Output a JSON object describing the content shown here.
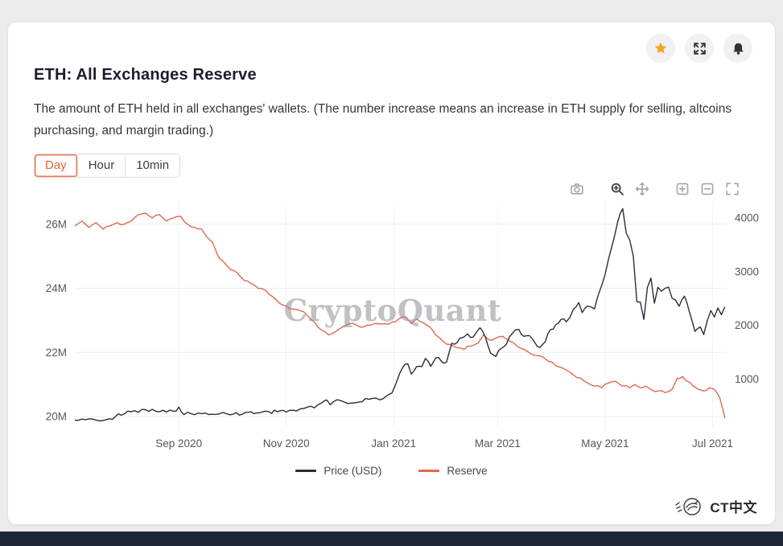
{
  "colors": {
    "accent": "#e2603a",
    "accent_border": "#ee7a50",
    "star": "#f2a51f",
    "bottom_bar": "#1f2637",
    "page_bg": "#ebebeb"
  },
  "card": {
    "title": "ETH: All Exchanges Reserve",
    "description": "The amount of ETH held in all exchanges' wallets. (The number increase means an increase in ETH supply for selling, altcoins purchasing, and margin trading.)",
    "interval_tabs": [
      {
        "label": "Day",
        "selected": true
      },
      {
        "label": "Hour",
        "selected": false
      },
      {
        "label": "10min",
        "selected": false
      }
    ],
    "watermark": "CryptoQuant"
  },
  "legend": [
    {
      "label": "Price (USD)"
    },
    {
      "label": "Reserve"
    }
  ],
  "footer": {
    "brand": "CT中文"
  },
  "chart_data": {
    "type": "line",
    "x_axis": {
      "range": [
        "2020-07-04",
        "2021-07-09"
      ],
      "tick_dates": [
        "2020-09-01",
        "2020-11-01",
        "2021-01-01",
        "2021-03-01",
        "2021-05-01",
        "2021-07-01"
      ],
      "tick_labels": [
        "Sep 2020",
        "Nov 2020",
        "Jan 2021",
        "Mar 2021",
        "May 2021",
        "Jul 2021"
      ]
    },
    "left_axis": {
      "tick_values": [
        20,
        22,
        24,
        26
      ],
      "tick_labels": [
        "20M",
        "22M",
        "24M",
        "26M"
      ],
      "range": [
        19.6,
        26.7
      ],
      "unit": "M ETH"
    },
    "right_axis": {
      "tick_values": [
        1000,
        2000,
        3000,
        4000
      ],
      "tick_labels": [
        "1000",
        "2000",
        "3000",
        "4000"
      ],
      "range": [
        60,
        4300
      ],
      "unit": "USD"
    },
    "series": [
      {
        "name": "Price (USD)",
        "axis": "right",
        "color": "#2b2e39",
        "points": [
          [
            "2020-07-04",
            232
          ],
          [
            "2020-07-10",
            241
          ],
          [
            "2020-07-16",
            234
          ],
          [
            "2020-07-22",
            245
          ],
          [
            "2020-07-27",
            300
          ],
          [
            "2020-08-01",
            346
          ],
          [
            "2020-08-05",
            390
          ],
          [
            "2020-08-09",
            378
          ],
          [
            "2020-08-13",
            427
          ],
          [
            "2020-08-17",
            433
          ],
          [
            "2020-08-21",
            388
          ],
          [
            "2020-08-25",
            383
          ],
          [
            "2020-08-29",
            398
          ],
          [
            "2020-09-01",
            475
          ],
          [
            "2020-09-04",
            335
          ],
          [
            "2020-09-08",
            352
          ],
          [
            "2020-09-12",
            366
          ],
          [
            "2020-09-16",
            365
          ],
          [
            "2020-09-20",
            342
          ],
          [
            "2020-09-24",
            349
          ],
          [
            "2020-09-28",
            354
          ],
          [
            "2020-10-02",
            346
          ],
          [
            "2020-10-07",
            341
          ],
          [
            "2020-10-12",
            387
          ],
          [
            "2020-10-17",
            368
          ],
          [
            "2020-10-22",
            392
          ],
          [
            "2020-10-27",
            387
          ],
          [
            "2020-11-01",
            383
          ],
          [
            "2020-11-05",
            417
          ],
          [
            "2020-11-09",
            444
          ],
          [
            "2020-11-13",
            476
          ],
          [
            "2020-11-17",
            462
          ],
          [
            "2020-11-21",
            550
          ],
          [
            "2020-11-24",
            608
          ],
          [
            "2020-11-26",
            518
          ],
          [
            "2020-11-30",
            615
          ],
          [
            "2020-12-04",
            570
          ],
          [
            "2020-12-08",
            551
          ],
          [
            "2020-12-12",
            568
          ],
          [
            "2020-12-16",
            636
          ],
          [
            "2020-12-20",
            639
          ],
          [
            "2020-12-24",
            612
          ],
          [
            "2020-12-28",
            686
          ],
          [
            "2020-12-31",
            738
          ],
          [
            "2021-01-03",
            978
          ],
          [
            "2021-01-06",
            1208
          ],
          [
            "2021-01-09",
            1281
          ],
          [
            "2021-01-11",
            1091
          ],
          [
            "2021-01-14",
            1232
          ],
          [
            "2021-01-17",
            1233
          ],
          [
            "2021-01-19",
            1382
          ],
          [
            "2021-01-22",
            1235
          ],
          [
            "2021-01-25",
            1395
          ],
          [
            "2021-01-28",
            1330
          ],
          [
            "2021-01-31",
            1314
          ],
          [
            "2021-02-03",
            1665
          ],
          [
            "2021-02-06",
            1679
          ],
          [
            "2021-02-09",
            1768
          ],
          [
            "2021-02-12",
            1840
          ],
          [
            "2021-02-15",
            1779
          ],
          [
            "2021-02-19",
            1956
          ],
          [
            "2021-02-22",
            1781
          ],
          [
            "2021-02-25",
            1482
          ],
          [
            "2021-02-28",
            1419
          ],
          [
            "2021-03-03",
            1567
          ],
          [
            "2021-03-06",
            1650
          ],
          [
            "2021-03-09",
            1835
          ],
          [
            "2021-03-13",
            1924
          ],
          [
            "2021-03-16",
            1793
          ],
          [
            "2021-03-19",
            1808
          ],
          [
            "2021-03-22",
            1681
          ],
          [
            "2021-03-25",
            1587
          ],
          [
            "2021-03-28",
            1691
          ],
          [
            "2021-03-31",
            1919
          ],
          [
            "2021-04-03",
            2010
          ],
          [
            "2021-04-06",
            2110
          ],
          [
            "2021-04-09",
            2068
          ],
          [
            "2021-04-13",
            2299
          ],
          [
            "2021-04-16",
            2422
          ],
          [
            "2021-04-18",
            2236
          ],
          [
            "2021-04-21",
            2360
          ],
          [
            "2021-04-25",
            2307
          ],
          [
            "2021-04-28",
            2648
          ],
          [
            "2021-05-01",
            2945
          ],
          [
            "2021-05-03",
            3240
          ],
          [
            "2021-05-05",
            3490
          ],
          [
            "2021-05-08",
            3910
          ],
          [
            "2021-05-11",
            4174
          ],
          [
            "2021-05-13",
            3717
          ],
          [
            "2021-05-15",
            3587
          ],
          [
            "2021-05-17",
            3282
          ],
          [
            "2021-05-19",
            2439
          ],
          [
            "2021-05-21",
            2430
          ],
          [
            "2021-05-23",
            2110
          ],
          [
            "2021-05-25",
            2705
          ],
          [
            "2021-05-27",
            2880
          ],
          [
            "2021-05-29",
            2412
          ],
          [
            "2021-05-31",
            2707
          ],
          [
            "2021-06-02",
            2634
          ],
          [
            "2021-06-04",
            2690
          ],
          [
            "2021-06-06",
            2711
          ],
          [
            "2021-06-08",
            2506
          ],
          [
            "2021-06-10",
            2471
          ],
          [
            "2021-06-12",
            2354
          ],
          [
            "2021-06-15",
            2543
          ],
          [
            "2021-06-18",
            2231
          ],
          [
            "2021-06-21",
            1886
          ],
          [
            "2021-06-24",
            1968
          ],
          [
            "2021-06-26",
            1830
          ],
          [
            "2021-06-28",
            2085
          ],
          [
            "2021-06-30",
            2275
          ],
          [
            "2021-07-02",
            2155
          ],
          [
            "2021-07-04",
            2322
          ],
          [
            "2021-07-06",
            2198
          ],
          [
            "2021-07-08",
            2342
          ]
        ]
      },
      {
        "name": "Reserve",
        "axis": "left",
        "color": "#e2694c",
        "unit": "M",
        "points": [
          [
            "2020-07-04",
            25.95
          ],
          [
            "2020-07-08",
            26.1
          ],
          [
            "2020-07-12",
            25.9
          ],
          [
            "2020-07-16",
            26.05
          ],
          [
            "2020-07-20",
            25.85
          ],
          [
            "2020-07-24",
            25.95
          ],
          [
            "2020-07-28",
            26.05
          ],
          [
            "2020-08-01",
            26.0
          ],
          [
            "2020-08-05",
            26.1
          ],
          [
            "2020-08-09",
            26.3
          ],
          [
            "2020-08-13",
            26.35
          ],
          [
            "2020-08-17",
            26.2
          ],
          [
            "2020-08-21",
            26.3
          ],
          [
            "2020-08-25",
            26.1
          ],
          [
            "2020-08-29",
            26.2
          ],
          [
            "2020-09-02",
            26.25
          ],
          [
            "2020-09-06",
            26.0
          ],
          [
            "2020-09-10",
            25.9
          ],
          [
            "2020-09-14",
            25.85
          ],
          [
            "2020-09-17",
            25.6
          ],
          [
            "2020-09-20",
            25.45
          ],
          [
            "2020-09-23",
            25.05
          ],
          [
            "2020-09-26",
            24.85
          ],
          [
            "2020-09-30",
            24.6
          ],
          [
            "2020-10-04",
            24.5
          ],
          [
            "2020-10-08",
            24.25
          ],
          [
            "2020-10-12",
            24.15
          ],
          [
            "2020-10-16",
            24.0
          ],
          [
            "2020-10-20",
            23.95
          ],
          [
            "2020-10-24",
            23.75
          ],
          [
            "2020-10-28",
            23.55
          ],
          [
            "2020-11-01",
            23.45
          ],
          [
            "2020-11-05",
            23.35
          ],
          [
            "2020-11-09",
            23.3
          ],
          [
            "2020-11-13",
            23.15
          ],
          [
            "2020-11-17",
            22.95
          ],
          [
            "2020-11-21",
            22.7
          ],
          [
            "2020-11-25",
            22.55
          ],
          [
            "2020-11-29",
            22.65
          ],
          [
            "2020-12-03",
            22.8
          ],
          [
            "2020-12-07",
            22.9
          ],
          [
            "2020-12-11",
            22.85
          ],
          [
            "2020-12-15",
            22.8
          ],
          [
            "2020-12-19",
            22.85
          ],
          [
            "2020-12-23",
            22.9
          ],
          [
            "2020-12-27",
            22.9
          ],
          [
            "2020-12-31",
            22.95
          ],
          [
            "2021-01-04",
            23.05
          ],
          [
            "2021-01-08",
            23.1
          ],
          [
            "2021-01-11",
            22.9
          ],
          [
            "2021-01-14",
            23.05
          ],
          [
            "2021-01-17",
            22.95
          ],
          [
            "2021-01-20",
            22.85
          ],
          [
            "2021-01-23",
            22.7
          ],
          [
            "2021-01-26",
            22.5
          ],
          [
            "2021-01-29",
            22.35
          ],
          [
            "2021-02-02",
            22.25
          ],
          [
            "2021-02-06",
            22.15
          ],
          [
            "2021-02-10",
            22.1
          ],
          [
            "2021-02-14",
            22.2
          ],
          [
            "2021-02-18",
            22.3
          ],
          [
            "2021-02-21",
            22.55
          ],
          [
            "2021-02-24",
            22.4
          ],
          [
            "2021-02-28",
            22.45
          ],
          [
            "2021-03-04",
            22.5
          ],
          [
            "2021-03-08",
            22.35
          ],
          [
            "2021-03-12",
            22.2
          ],
          [
            "2021-03-16",
            22.1
          ],
          [
            "2021-03-20",
            21.95
          ],
          [
            "2021-03-24",
            21.9
          ],
          [
            "2021-03-28",
            21.8
          ],
          [
            "2021-04-01",
            21.7
          ],
          [
            "2021-04-05",
            21.55
          ],
          [
            "2021-04-09",
            21.45
          ],
          [
            "2021-04-13",
            21.3
          ],
          [
            "2021-04-17",
            21.2
          ],
          [
            "2021-04-21",
            21.05
          ],
          [
            "2021-04-25",
            20.95
          ],
          [
            "2021-04-29",
            20.9
          ],
          [
            "2021-05-03",
            21.05
          ],
          [
            "2021-05-07",
            21.1
          ],
          [
            "2021-05-11",
            20.95
          ],
          [
            "2021-05-15",
            20.9
          ],
          [
            "2021-05-18",
            21.0
          ],
          [
            "2021-05-21",
            20.9
          ],
          [
            "2021-05-24",
            20.95
          ],
          [
            "2021-05-27",
            20.85
          ],
          [
            "2021-05-31",
            20.8
          ],
          [
            "2021-06-04",
            20.75
          ],
          [
            "2021-06-08",
            20.85
          ],
          [
            "2021-06-11",
            21.2
          ],
          [
            "2021-06-14",
            21.25
          ],
          [
            "2021-06-17",
            21.1
          ],
          [
            "2021-06-20",
            20.95
          ],
          [
            "2021-06-23",
            20.85
          ],
          [
            "2021-06-26",
            20.8
          ],
          [
            "2021-06-29",
            20.9
          ],
          [
            "2021-07-02",
            20.85
          ],
          [
            "2021-07-05",
            20.6
          ],
          [
            "2021-07-07",
            20.2
          ],
          [
            "2021-07-08",
            19.95
          ]
        ]
      }
    ]
  }
}
